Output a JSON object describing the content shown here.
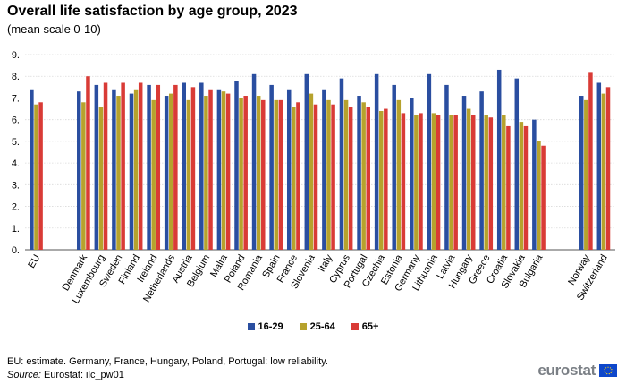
{
  "header": {
    "title": "Overall life satisfaction by age group, 2023",
    "subtitle": "(mean scale 0-10)"
  },
  "colors": {
    "series_16_29": "#2a4ea0",
    "series_25_64": "#b6a22d",
    "series_65_plus": "#d93b36",
    "grid": "#d9d9d9",
    "axis": "#555555"
  },
  "chart_data": {
    "type": "bar",
    "title": "Overall life satisfaction by age group, 2023",
    "subtitle": "(mean scale 0-10)",
    "xlabel": "",
    "ylabel": "",
    "ylim": [
      0,
      9
    ],
    "yticks": [
      "0.",
      "1.",
      "2.",
      "3.",
      "4.",
      "5.",
      "6.",
      "7.",
      "8.",
      "9."
    ],
    "grid": true,
    "legend_position": "bottom",
    "categories": [
      "EU",
      "Denmark",
      "Luxembourg",
      "Sweden",
      "Finland",
      "Ireland",
      "Netherlands",
      "Austria",
      "Belgium",
      "Malta",
      "Poland",
      "Romania",
      "Spain",
      "France",
      "Slovenia",
      "Italy",
      "Cyprus",
      "Portugal",
      "Czechia",
      "Estonia",
      "Germany",
      "Lithuania",
      "Latvia",
      "Hungary",
      "Greece",
      "Croatia",
      "Slovakia",
      "Bulgaria",
      "Norway",
      "Switzerland"
    ],
    "groups_after_gap": [
      "Denmark",
      "Norway"
    ],
    "series": [
      {
        "name": "16-29",
        "values": [
          7.4,
          7.3,
          7.6,
          7.4,
          7.2,
          7.6,
          7.1,
          7.7,
          7.7,
          7.4,
          7.8,
          8.1,
          7.6,
          7.4,
          8.1,
          7.4,
          7.9,
          7.1,
          8.1,
          7.6,
          7.0,
          8.1,
          7.6,
          7.1,
          7.3,
          8.3,
          7.9,
          6.0,
          7.1,
          7.7
        ]
      },
      {
        "name": "25-64",
        "values": [
          6.7,
          6.8,
          6.6,
          7.1,
          7.4,
          6.9,
          7.2,
          6.9,
          7.1,
          7.3,
          7.0,
          7.1,
          6.9,
          6.6,
          7.2,
          6.9,
          6.9,
          6.8,
          6.4,
          6.9,
          6.2,
          6.3,
          6.2,
          6.5,
          6.2,
          6.2,
          5.9,
          5.0,
          6.9,
          7.2
        ]
      },
      {
        "name": "65+",
        "values": [
          6.8,
          8.0,
          7.7,
          7.7,
          7.7,
          7.6,
          7.6,
          7.5,
          7.4,
          7.2,
          7.1,
          6.9,
          6.9,
          6.8,
          6.7,
          6.7,
          6.6,
          6.6,
          6.5,
          6.3,
          6.3,
          6.2,
          6.2,
          6.2,
          6.1,
          5.7,
          5.7,
          4.8,
          8.2,
          7.5
        ]
      }
    ]
  },
  "legend": {
    "items": [
      "16-29",
      "25-64",
      "65+"
    ]
  },
  "footer": {
    "note": "EU: estimate. Germany, France, Hungary, Poland, Portugal: low reliability.",
    "source_label": "Source:",
    "source_text": " Eurostat: ilc_pw01",
    "logo_text": "eurostat"
  }
}
